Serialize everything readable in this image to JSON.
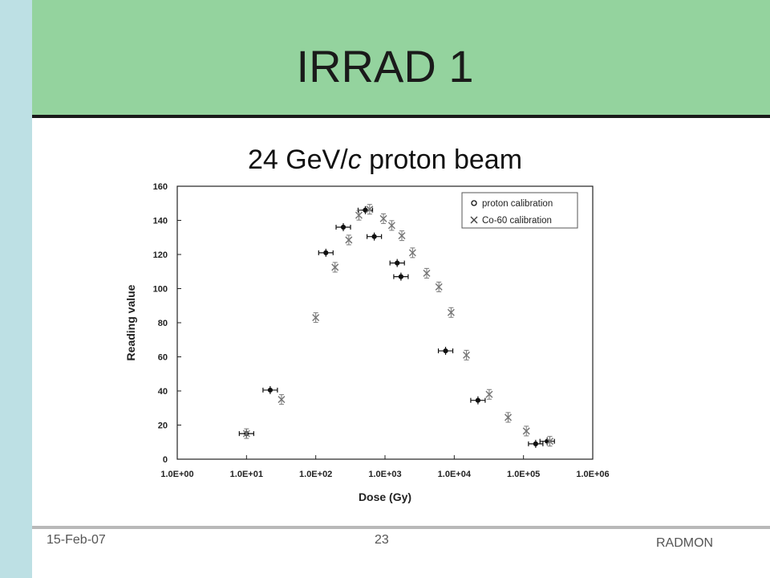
{
  "slide": {
    "title": "IRRAD 1",
    "subtitle_pre": "24 GeV/",
    "subtitle_italic": "c",
    "subtitle_post": " proton beam"
  },
  "footer": {
    "date": "15-Feb-07",
    "page": "23",
    "name": "RADMON"
  },
  "colors": {
    "header": "#94d39e",
    "left_bar": "#bde0e4",
    "proton": "#111111",
    "co60": "#777777"
  },
  "chart_data": {
    "type": "scatter",
    "xlabel": "Dose (Gy)",
    "ylabel": "Reading value",
    "xscale": "log",
    "xlim": [
      1,
      1000000
    ],
    "ylim": [
      0,
      160
    ],
    "x_ticks": [
      "1.0E+00",
      "1.0E+01",
      "1.0E+02",
      "1.0E+03",
      "1.0E+04",
      "1.0E+05",
      "1.0E+06"
    ],
    "y_ticks": [
      "0",
      "20",
      "40",
      "60",
      "80",
      "100",
      "120",
      "140",
      "160"
    ],
    "legend_position": "top-right",
    "grid": false,
    "series": [
      {
        "name": "proton calibration",
        "marker": "circle",
        "points": [
          {
            "x": 10,
            "y": 15
          },
          {
            "x": 22,
            "y": 40.5
          },
          {
            "x": 140,
            "y": 121
          },
          {
            "x": 250,
            "y": 136
          },
          {
            "x": 520,
            "y": 146
          },
          {
            "x": 700,
            "y": 130.5
          },
          {
            "x": 1500,
            "y": 115
          },
          {
            "x": 1700,
            "y": 107
          },
          {
            "x": 7500,
            "y": 63.5
          },
          {
            "x": 22000,
            "y": 34.5
          },
          {
            "x": 150000,
            "y": 9
          },
          {
            "x": 220000,
            "y": 10.5
          }
        ]
      },
      {
        "name": "Co-60 calibration",
        "marker": "x",
        "points": [
          {
            "x": 10,
            "y": 15
          },
          {
            "x": 32,
            "y": 35
          },
          {
            "x": 100,
            "y": 83
          },
          {
            "x": 190,
            "y": 112.5
          },
          {
            "x": 300,
            "y": 128.5
          },
          {
            "x": 420,
            "y": 143
          },
          {
            "x": 600,
            "y": 146.5
          },
          {
            "x": 950,
            "y": 141
          },
          {
            "x": 1250,
            "y": 137
          },
          {
            "x": 1750,
            "y": 131
          },
          {
            "x": 2500,
            "y": 121
          },
          {
            "x": 4000,
            "y": 109
          },
          {
            "x": 6000,
            "y": 101
          },
          {
            "x": 9000,
            "y": 86
          },
          {
            "x": 15000,
            "y": 61
          },
          {
            "x": 32000,
            "y": 38
          },
          {
            "x": 60000,
            "y": 24.5
          },
          {
            "x": 110000,
            "y": 16.5
          },
          {
            "x": 240000,
            "y": 10.5
          }
        ]
      }
    ]
  }
}
